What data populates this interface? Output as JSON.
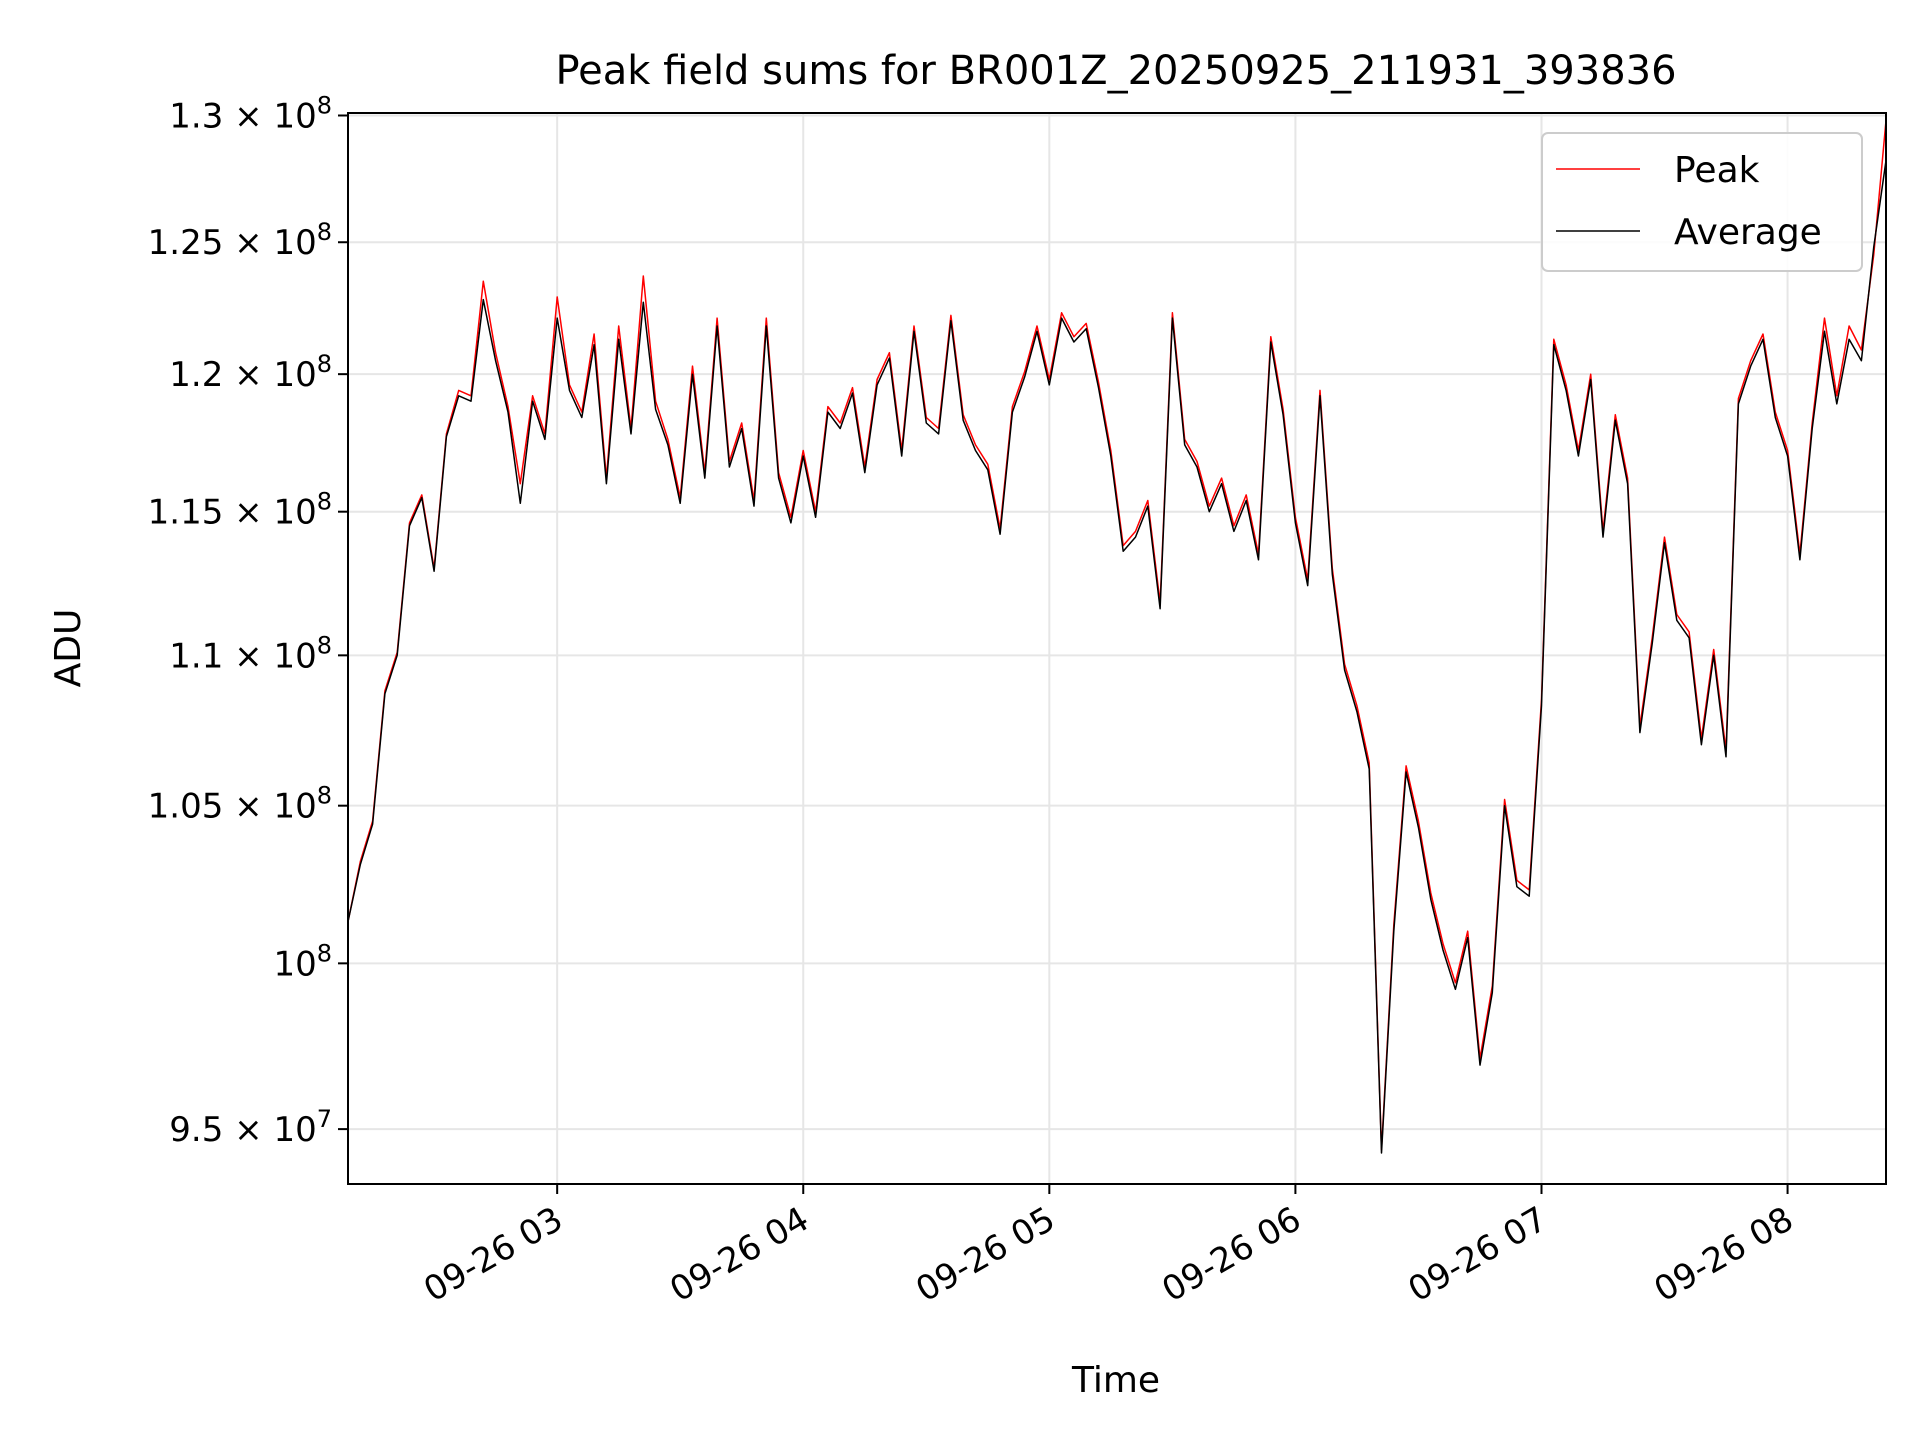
{
  "chart_data": {
    "type": "line",
    "title": "Peak field sums for BR001Z_20250925_211931_393836",
    "xlabel": "Time",
    "ylabel": "ADU",
    "yscale": "log",
    "xlim": [
      "2025-09-26 02:09",
      "2025-09-26 08:24"
    ],
    "ylim": [
      93400000,
      130100000
    ],
    "xticks": [
      {
        "x": "2025-09-26 03:00",
        "label": "09-26 03"
      },
      {
        "x": "2025-09-26 04:00",
        "label": "09-26 04"
      },
      {
        "x": "2025-09-26 05:00",
        "label": "09-26 05"
      },
      {
        "x": "2025-09-26 06:00",
        "label": "09-26 06"
      },
      {
        "x": "2025-09-26 07:00",
        "label": "09-26 07"
      },
      {
        "x": "2025-09-26 08:00",
        "label": "09-26 08"
      }
    ],
    "yticks": [
      {
        "value": 95000000,
        "mantissa": "9.5",
        "exp": "7"
      },
      {
        "value": 100000000,
        "mantissa": "",
        "exp": "8"
      },
      {
        "value": 105000000,
        "mantissa": "1.05",
        "exp": "8"
      },
      {
        "value": 110000000,
        "mantissa": "1.1",
        "exp": "8"
      },
      {
        "value": 115000000,
        "mantissa": "1.15",
        "exp": "8"
      },
      {
        "value": 120000000,
        "mantissa": "1.2",
        "exp": "8"
      },
      {
        "value": 125000000,
        "mantissa": "1.25",
        "exp": "8"
      },
      {
        "value": 130000000,
        "mantissa": "1.3",
        "exp": "8"
      }
    ],
    "grid": true,
    "legend_position": "top-right",
    "times": [
      "02:09",
      "02:12",
      "02:15",
      "02:18",
      "02:21",
      "02:24",
      "02:27",
      "02:30",
      "02:33",
      "02:36",
      "02:39",
      "02:42",
      "02:45",
      "02:48",
      "02:51",
      "02:54",
      "02:57",
      "03:00",
      "03:03",
      "03:06",
      "03:09",
      "03:12",
      "03:15",
      "03:18",
      "03:21",
      "03:24",
      "03:27",
      "03:30",
      "03:33",
      "03:36",
      "03:39",
      "03:42",
      "03:45",
      "03:48",
      "03:51",
      "03:54",
      "03:57",
      "04:00",
      "04:03",
      "04:06",
      "04:09",
      "04:12",
      "04:15",
      "04:18",
      "04:21",
      "04:24",
      "04:27",
      "04:30",
      "04:33",
      "04:36",
      "04:39",
      "04:42",
      "04:45",
      "04:48",
      "04:51",
      "04:54",
      "04:57",
      "05:00",
      "05:03",
      "05:06",
      "05:09",
      "05:12",
      "05:15",
      "05:18",
      "05:21",
      "05:24",
      "05:27",
      "05:30",
      "05:33",
      "05:36",
      "05:39",
      "05:42",
      "05:45",
      "05:48",
      "05:51",
      "05:54",
      "05:57",
      "06:00",
      "06:03",
      "06:06",
      "06:09",
      "06:12",
      "06:15",
      "06:18",
      "06:21",
      "06:24",
      "06:27",
      "06:30",
      "06:33",
      "06:36",
      "06:39",
      "06:42",
      "06:45",
      "06:48",
      "06:51",
      "06:54",
      "06:57",
      "07:00",
      "07:03",
      "07:06",
      "07:09",
      "07:12",
      "07:15",
      "07:18",
      "07:21",
      "07:24",
      "07:27",
      "07:30",
      "07:33",
      "07:36",
      "07:39",
      "07:42",
      "07:45",
      "07:48",
      "07:51",
      "07:54",
      "07:57",
      "08:00",
      "08:03",
      "08:06",
      "08:09",
      "08:12",
      "08:15",
      "08:18",
      "08:21",
      "08:24"
    ],
    "series": [
      {
        "name": "Peak",
        "color": "#ff0000",
        "values": [
          101300000,
          103200000,
          104500000,
          108800000,
          110100000,
          114600000,
          115600000,
          113000000,
          117800000,
          119400000,
          119200000,
          123500000,
          120800000,
          118800000,
          116000000,
          119200000,
          117800000,
          122900000,
          119600000,
          118600000,
          121500000,
          116200000,
          121800000,
          118000000,
          123700000,
          119000000,
          117600000,
          115500000,
          120300000,
          116400000,
          122100000,
          116800000,
          118200000,
          115400000,
          122100000,
          116400000,
          114800000,
          117200000,
          115000000,
          118800000,
          118200000,
          119500000,
          116600000,
          119800000,
          120800000,
          117200000,
          121800000,
          118400000,
          118000000,
          122200000,
          118500000,
          117400000,
          116700000,
          114400000,
          118800000,
          120100000,
          121800000,
          119800000,
          122300000,
          121400000,
          121900000,
          119700000,
          117200000,
          113800000,
          114300000,
          115400000,
          111800000,
          122300000,
          117600000,
          116800000,
          115200000,
          116200000,
          114500000,
          115600000,
          113500000,
          121400000,
          118700000,
          114800000,
          112600000,
          119400000,
          113000000,
          109700000,
          108300000,
          106400000,
          94400000,
          101200000,
          106300000,
          104500000,
          102200000,
          100600000,
          99400000,
          101000000,
          97100000,
          99300000,
          105200000,
          102600000,
          102300000,
          108500000,
          121300000,
          119600000,
          117200000,
          120000000,
          114300000,
          118500000,
          116200000,
          107600000,
          110600000,
          114100000,
          111400000,
          110800000,
          107200000,
          110200000,
          106800000,
          119100000,
          120500000,
          121500000,
          118600000,
          117200000,
          113500000,
          118200000,
          122100000,
          119200000,
          121800000,
          120900000,
          124500000,
          129800000
        ]
      },
      {
        "name": "Average",
        "color": "#000000",
        "values": [
          101300000,
          103100000,
          104400000,
          108700000,
          110000000,
          114500000,
          115500000,
          112900000,
          117700000,
          119200000,
          119000000,
          122800000,
          120500000,
          118600000,
          115300000,
          119000000,
          117600000,
          122100000,
          119400000,
          118400000,
          121100000,
          116000000,
          121300000,
          117800000,
          122700000,
          118700000,
          117400000,
          115300000,
          120000000,
          116200000,
          121800000,
          116600000,
          118000000,
          115200000,
          121800000,
          116200000,
          114600000,
          117000000,
          114800000,
          118600000,
          118000000,
          119300000,
          116400000,
          119600000,
          120600000,
          117000000,
          121600000,
          118200000,
          117800000,
          122000000,
          118300000,
          117200000,
          116500000,
          114200000,
          118600000,
          119900000,
          121600000,
          119600000,
          122100000,
          121200000,
          121700000,
          119500000,
          117000000,
          113600000,
          114100000,
          115200000,
          111600000,
          122100000,
          117400000,
          116600000,
          115000000,
          116000000,
          114300000,
          115400000,
          113300000,
          121200000,
          118500000,
          114600000,
          112400000,
          119200000,
          112800000,
          109500000,
          108100000,
          106200000,
          94300000,
          101000000,
          106100000,
          104300000,
          102000000,
          100400000,
          99200000,
          100800000,
          96900000,
          99100000,
          105000000,
          102400000,
          102100000,
          108300000,
          121100000,
          119400000,
          117000000,
          119800000,
          114100000,
          118300000,
          116000000,
          107400000,
          110400000,
          113900000,
          111200000,
          110600000,
          107000000,
          110000000,
          106600000,
          118900000,
          120300000,
          121300000,
          118400000,
          117000000,
          113300000,
          118000000,
          121600000,
          118900000,
          121300000,
          120500000,
          124800000,
          128200000
        ]
      }
    ]
  }
}
